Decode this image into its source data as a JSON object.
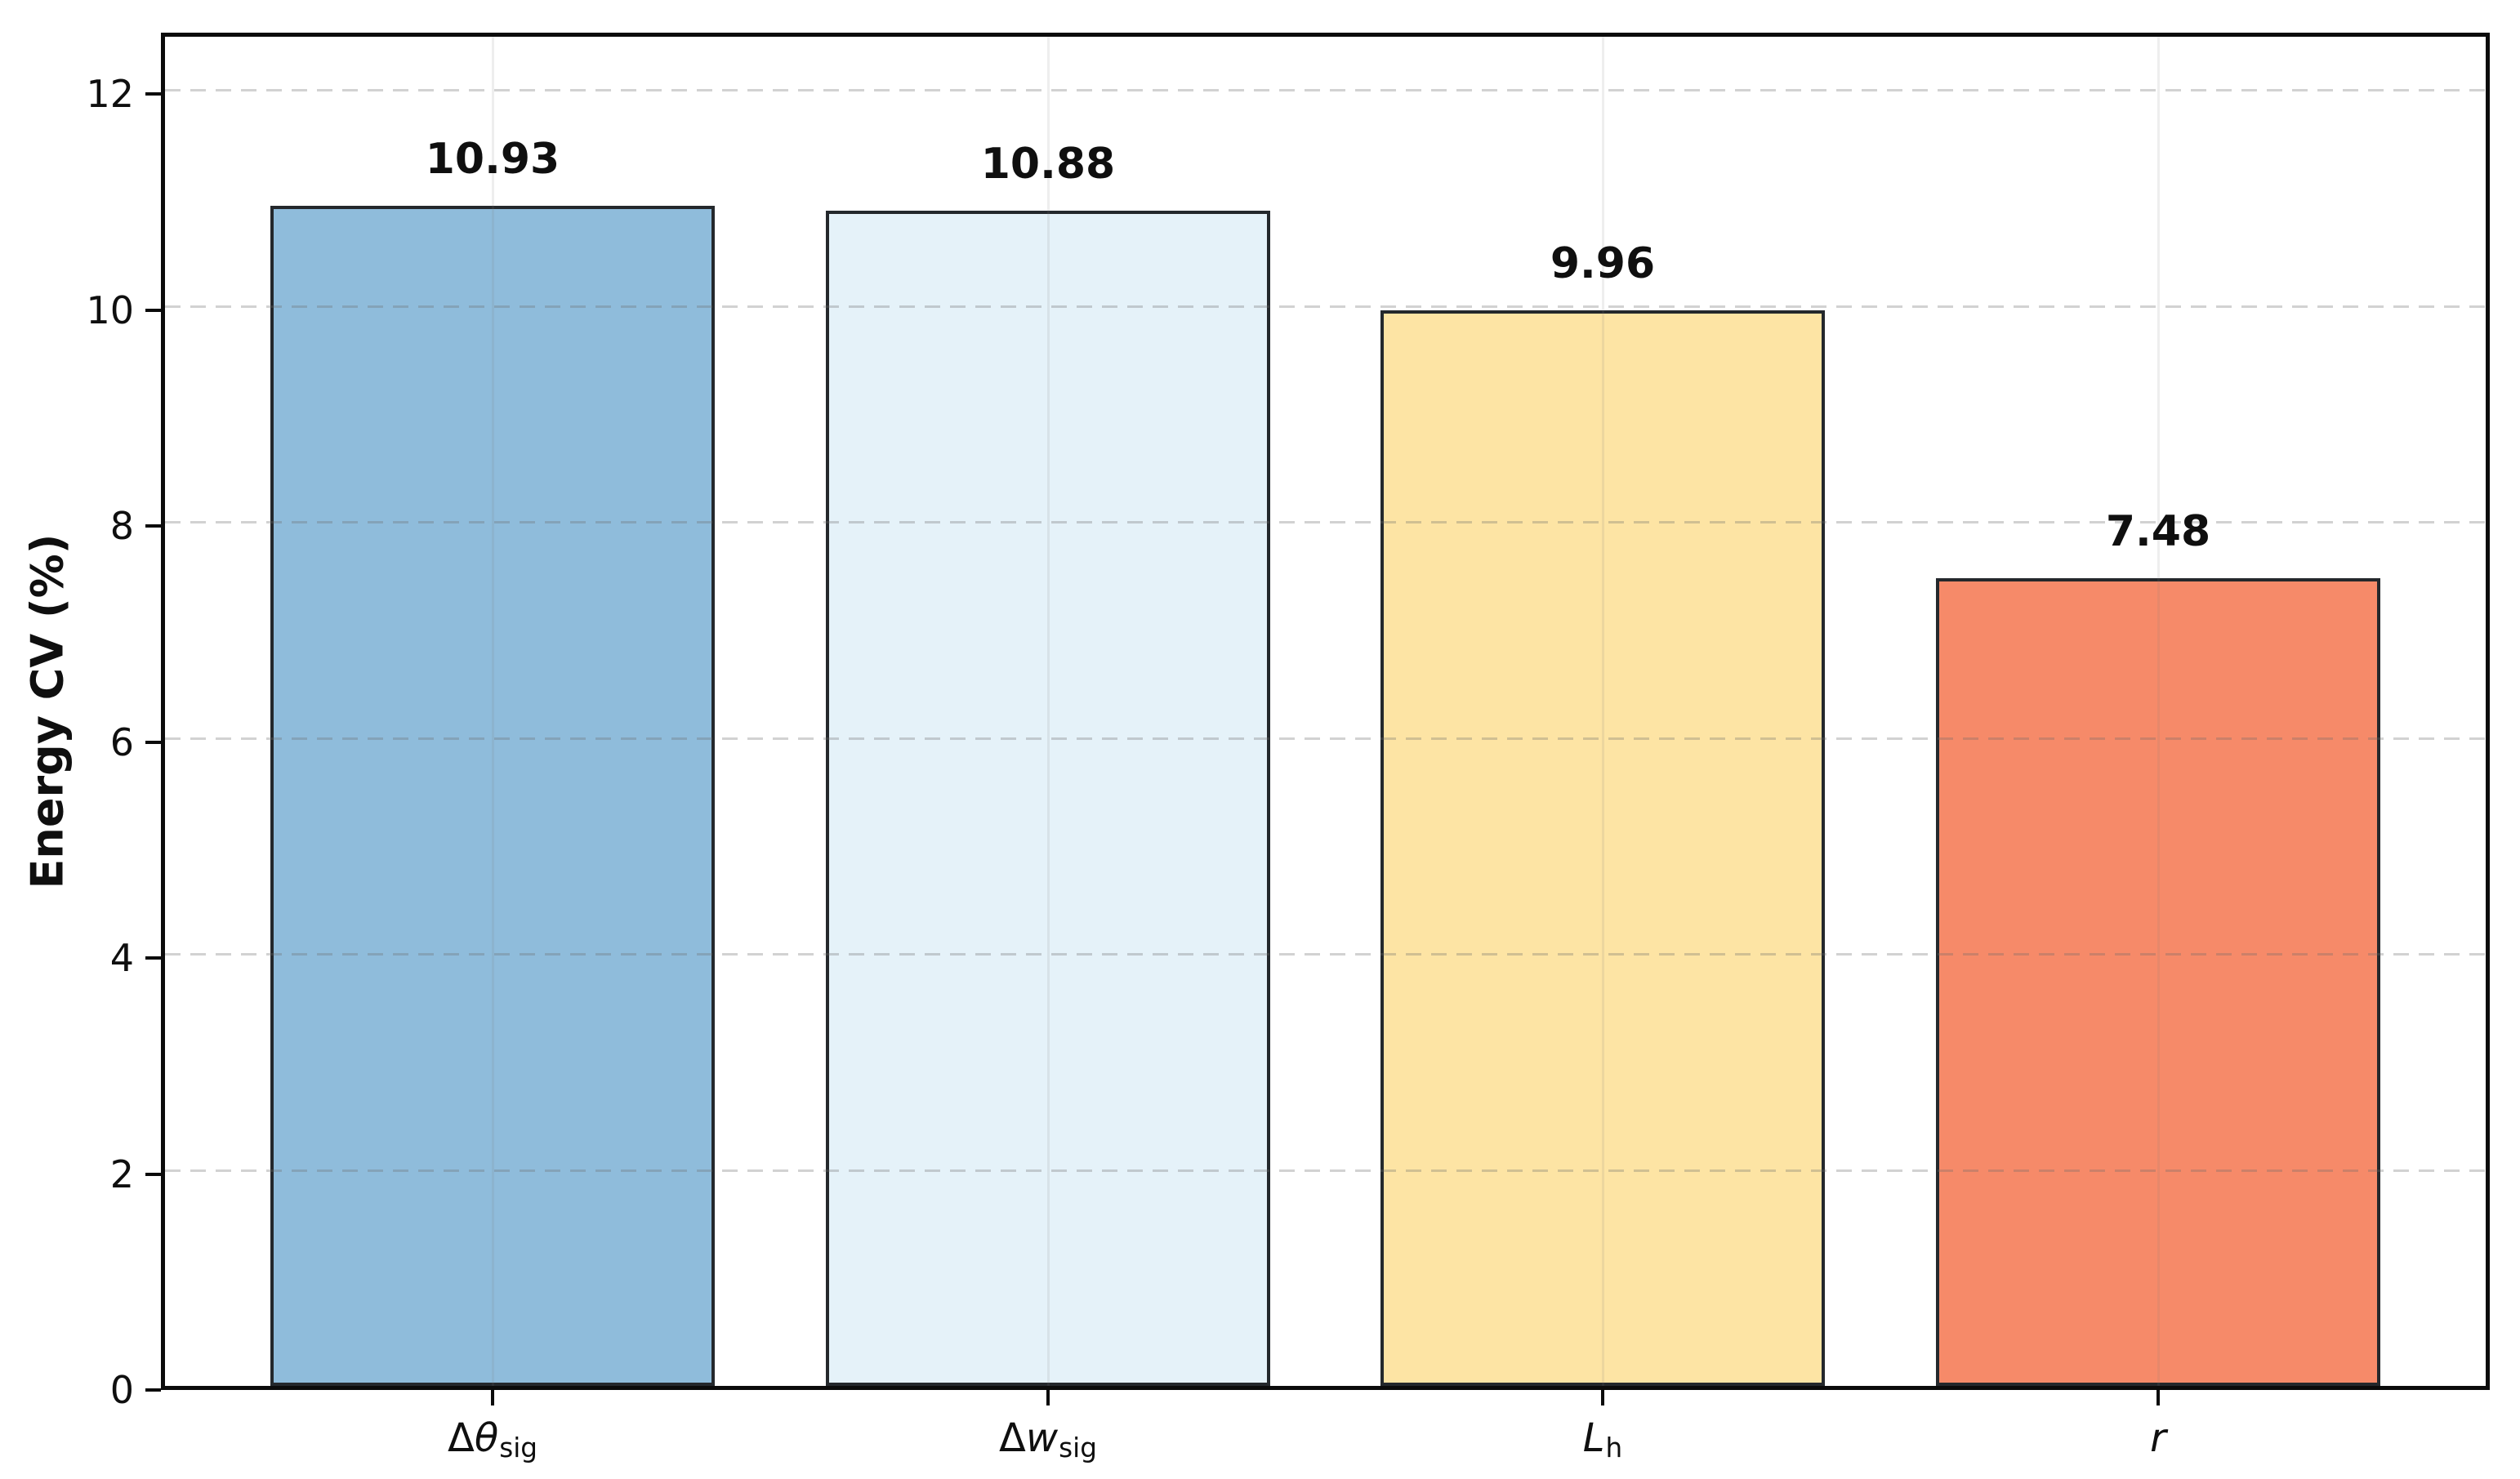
{
  "figure": {
    "background": "#ffffff"
  },
  "chart_data": {
    "type": "bar",
    "categories": [
      "Δθ_sig",
      "Δw_sig",
      "L_h",
      "r"
    ],
    "categories_rich": [
      {
        "pre": "Δ",
        "it": "θ",
        "sub": "sig"
      },
      {
        "pre": "Δ",
        "it": "w",
        "sub": "sig"
      },
      {
        "pre": "",
        "it": "L",
        "sub": "h"
      },
      {
        "pre": "",
        "it": "r",
        "sub": ""
      }
    ],
    "values": [
      10.93,
      10.88,
      9.96,
      7.48
    ],
    "bar_labels": [
      "10.93",
      "10.88",
      "9.96",
      "7.48"
    ],
    "title": "",
    "xlabel": "",
    "ylabel": "Energy CV (%)",
    "ylim": [
      0,
      12.57
    ],
    "yticks": [
      0,
      2,
      4,
      6,
      8,
      10,
      12
    ],
    "grid": true,
    "legend": "none",
    "bar_colors": [
      "#8FBCDB",
      "#E5F2F9",
      "#FDE4A4",
      "#F68A69"
    ],
    "bar_edge_color": "#24282c",
    "grid_color_h": "#d9d9d9",
    "grid_color_v": "#ececec",
    "spine_color": "#0b0b0b",
    "text_color": "#0f0f0f"
  }
}
